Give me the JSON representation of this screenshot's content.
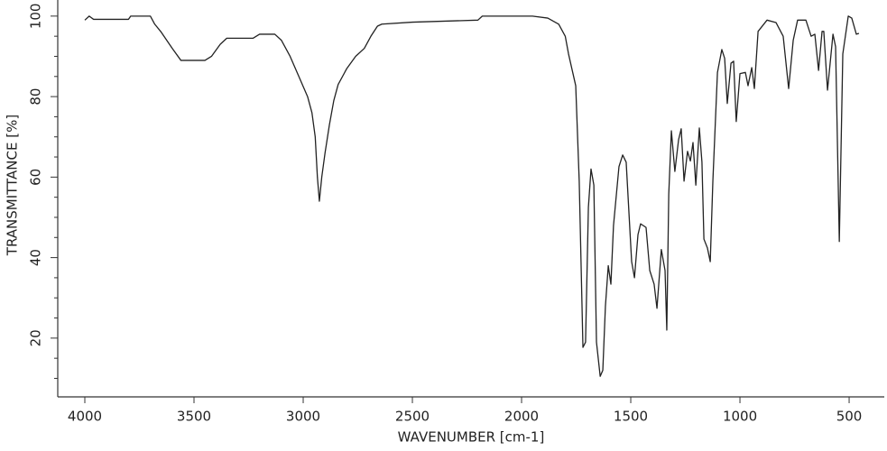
{
  "chart_data": {
    "type": "line",
    "xlabel": "WAVENUMBER [cm-1]",
    "ylabel": "TRANSMITTANCE [%]",
    "xlim": [
      4124,
      339
    ],
    "ylim": [
      5.4,
      104
    ],
    "xticks": [
      4000,
      3500,
      3000,
      2500,
      2000,
      1500,
      1000,
      500
    ],
    "yticks": [
      20,
      40,
      60,
      80,
      100
    ],
    "yminorticks": [
      10,
      15,
      25,
      30,
      35,
      45,
      50,
      55,
      65,
      70,
      75,
      85,
      90,
      95
    ],
    "series": [
      {
        "color": "#222222",
        "x": [
          4000,
          3980,
          3960,
          3800,
          3790,
          3700,
          3680,
          3650,
          3600,
          3560,
          3450,
          3420,
          3380,
          3350,
          3230,
          3200,
          3130,
          3100,
          3060,
          3020,
          2980,
          2960,
          2945,
          2935,
          2926,
          2915,
          2900,
          2880,
          2860,
          2840,
          2800,
          2760,
          2720,
          2690,
          2660,
          2640,
          2500,
          2200,
          2180,
          1950,
          1880,
          1830,
          1800,
          1785,
          1752,
          1736,
          1719,
          1707,
          1694,
          1682,
          1669,
          1657,
          1640,
          1628,
          1616,
          1603,
          1591,
          1579,
          1554,
          1537,
          1521,
          1496,
          1483,
          1467,
          1455,
          1430,
          1413,
          1393,
          1380,
          1360,
          1343,
          1335,
          1326,
          1314,
          1298,
          1281,
          1269,
          1256,
          1240,
          1227,
          1215,
          1202,
          1186,
          1174,
          1165,
          1149,
          1136,
          1124,
          1103,
          1083,
          1070,
          1058,
          1041,
          1029,
          1017,
          1000,
          975,
          963,
          946,
          934,
          917,
          876,
          835,
          802,
          777,
          756,
          736,
          698,
          674,
          657,
          640,
          624,
          616,
          599,
          574,
          562,
          545,
          529,
          504,
          488,
          467,
          455
        ],
        "values": [
          99,
          100,
          99.2,
          99.2,
          100,
          100,
          98,
          96,
          92,
          89,
          89,
          90,
          93,
          94.5,
          94.5,
          95.5,
          95.5,
          94,
          90,
          85,
          80,
          76,
          70,
          60,
          54,
          60,
          66,
          73,
          79,
          83,
          87,
          90,
          92,
          95,
          97.5,
          98,
          98.5,
          99,
          100,
          100,
          99.5,
          98,
          95,
          90.6,
          82.7,
          59,
          17.7,
          19,
          52.5,
          62,
          58,
          19,
          10.5,
          12,
          28,
          38,
          33.4,
          48,
          62.6,
          65.5,
          63.7,
          39,
          35,
          45.7,
          48.4,
          47.5,
          36.8,
          33.4,
          27.4,
          42,
          36.8,
          22,
          55.8,
          71.5,
          61.4,
          69.3,
          72,
          59,
          66.4,
          64,
          68.6,
          58,
          72.2,
          63.7,
          44.6,
          42.4,
          39,
          59,
          86,
          91.7,
          89.5,
          78.3,
          88.3,
          88.8,
          73.8,
          85.7,
          86,
          82.7,
          87.2,
          82,
          96.2,
          99,
          98.4,
          95,
          82,
          94,
          99,
          99,
          95,
          95.5,
          86.5,
          96.2,
          96.2,
          81.6,
          95.5,
          92.4,
          44,
          90.6,
          100,
          99.5,
          95.5,
          95.7
        ]
      }
    ]
  }
}
